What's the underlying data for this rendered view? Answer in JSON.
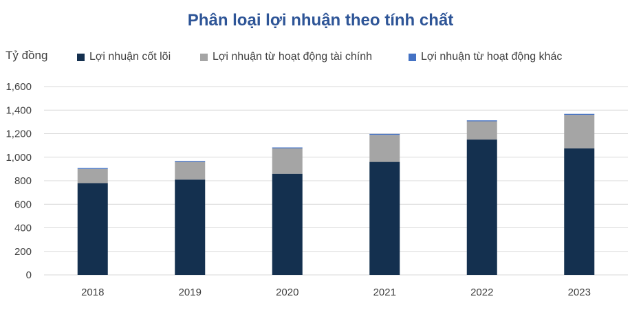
{
  "chart_data": {
    "type": "bar",
    "stacked": true,
    "title": "Phân loại lợi nhuận theo tính chất",
    "ylabel": "Tỷ đồng",
    "xlabel": "",
    "categories": [
      "2018",
      "2019",
      "2020",
      "2021",
      "2022",
      "2023"
    ],
    "ylim": [
      0,
      1600
    ],
    "yticks": [
      "0",
      "200",
      "400",
      "600",
      "800",
      "1,000",
      "1,200",
      "1,400",
      "1,600"
    ],
    "ytick_values": [
      0,
      200,
      400,
      600,
      800,
      1000,
      1200,
      1400,
      1600
    ],
    "grid": true,
    "legend_position": "top",
    "series": [
      {
        "name": "Lợi nhuận cốt lõi",
        "color": "#14304F",
        "values": [
          780,
          810,
          860,
          960,
          1150,
          1075
        ]
      },
      {
        "name": "Lợi nhuận từ hoạt động tài chính",
        "color": "#A5A5A5",
        "values": [
          120,
          150,
          215,
          230,
          155,
          285
        ]
      },
      {
        "name": "Lợi nhuận từ hoạt động khác",
        "color": "#4472C4",
        "values": [
          8,
          8,
          8,
          8,
          8,
          8
        ]
      }
    ]
  }
}
